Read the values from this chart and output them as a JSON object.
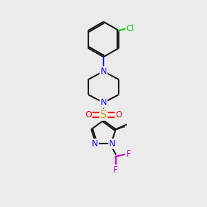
{
  "bg_color": "#ebebeb",
  "bond_color": "#1a1a1a",
  "N_color": "#0000ff",
  "O_color": "#ff0000",
  "S_color": "#ccaa00",
  "Cl_color": "#00cc00",
  "F_color": "#cc00cc",
  "line_width": 1.6,
  "font_size": 9,
  "figsize": [
    3.0,
    3.0
  ],
  "dpi": 100,
  "xlim": [
    0,
    10
  ],
  "ylim": [
    0,
    10
  ]
}
